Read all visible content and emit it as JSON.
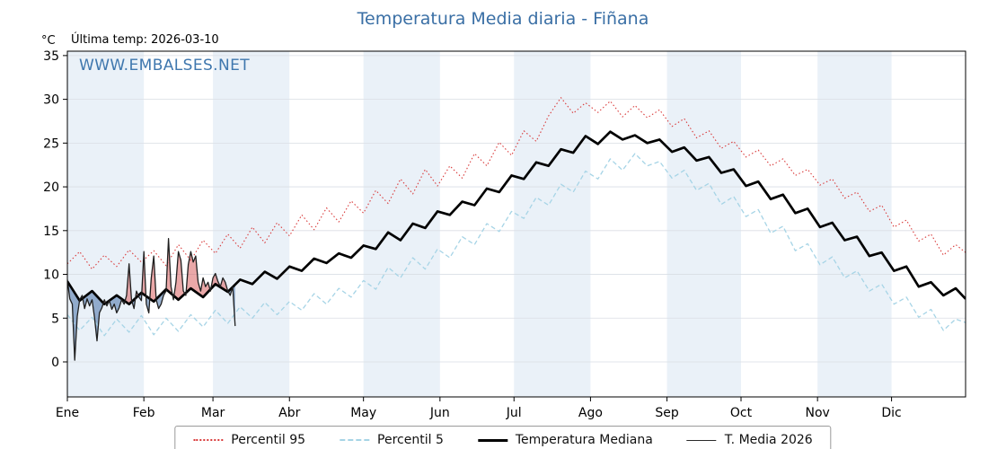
{
  "header": {
    "title": "Temperatura Media diaria - Fiñana",
    "last_temp_label": "Última temp: 2026-03-10",
    "y_unit_label": "°C",
    "watermark": "WWW.EMBALSES.NET"
  },
  "legend": {
    "items": [
      {
        "label": "Percentil 95",
        "color": "#d93b3b",
        "style": "dotted",
        "weight": 2
      },
      {
        "label": "Percentil 5",
        "color": "#a6d4e6",
        "style": "dashed",
        "weight": 2
      },
      {
        "label": "Temperatura Mediana",
        "color": "#000000",
        "style": "solid",
        "weight": 3
      },
      {
        "label": "T. Media 2026",
        "color": "#2a2a2a",
        "style": "solid",
        "weight": 1.5
      }
    ]
  },
  "chart_data": {
    "type": "line",
    "title": "Temperatura Media diaria - Fiñana",
    "ylabel": "°C",
    "xlim_days": [
      0,
      364
    ],
    "ylim": [
      -4,
      35.5
    ],
    "yticks": [
      0,
      5,
      10,
      15,
      20,
      25,
      30,
      35
    ],
    "month_labels": [
      "Ene",
      "Feb",
      "Mar",
      "Abr",
      "May",
      "Jun",
      "Jul",
      "Ago",
      "Sep",
      "Oct",
      "Nov",
      "Dic"
    ],
    "month_start_days": [
      0,
      31,
      59,
      90,
      120,
      151,
      181,
      212,
      243,
      273,
      304,
      334
    ],
    "style": {
      "band_color": "#eaf1f8",
      "grid_color": "#d9dee4",
      "axis_color": "#000000"
    },
    "series": [
      {
        "name": "Percentil 95",
        "color": "#d93b3b",
        "width": 1.1,
        "dash": "1.5 2.6",
        "points": [
          [
            0,
            11.2
          ],
          [
            5,
            12.6
          ],
          [
            10,
            10.6
          ],
          [
            15,
            12.2
          ],
          [
            20,
            10.9
          ],
          [
            25,
            12.8
          ],
          [
            30,
            11.4
          ],
          [
            35,
            12.7
          ],
          [
            40,
            11.0
          ],
          [
            45,
            13.4
          ],
          [
            50,
            11.6
          ],
          [
            55,
            13.9
          ],
          [
            60,
            12.4
          ],
          [
            65,
            14.6
          ],
          [
            70,
            13.0
          ],
          [
            75,
            15.4
          ],
          [
            80,
            13.6
          ],
          [
            85,
            15.9
          ],
          [
            90,
            14.4
          ],
          [
            95,
            16.8
          ],
          [
            100,
            15.1
          ],
          [
            105,
            17.6
          ],
          [
            110,
            16.0
          ],
          [
            115,
            18.4
          ],
          [
            120,
            17.0
          ],
          [
            125,
            19.6
          ],
          [
            130,
            18.1
          ],
          [
            135,
            20.9
          ],
          [
            140,
            19.2
          ],
          [
            145,
            22.0
          ],
          [
            150,
            20.1
          ],
          [
            155,
            22.4
          ],
          [
            160,
            21.0
          ],
          [
            165,
            23.8
          ],
          [
            170,
            22.4
          ],
          [
            175,
            25.1
          ],
          [
            180,
            23.6
          ],
          [
            185,
            26.4
          ],
          [
            190,
            25.2
          ],
          [
            195,
            28.1
          ],
          [
            200,
            30.2
          ],
          [
            205,
            28.4
          ],
          [
            210,
            29.6
          ],
          [
            215,
            28.5
          ],
          [
            220,
            29.8
          ],
          [
            225,
            28.0
          ],
          [
            230,
            29.3
          ],
          [
            235,
            27.9
          ],
          [
            240,
            28.8
          ],
          [
            245,
            26.9
          ],
          [
            250,
            27.8
          ],
          [
            255,
            25.6
          ],
          [
            260,
            26.4
          ],
          [
            265,
            24.4
          ],
          [
            270,
            25.2
          ],
          [
            275,
            23.4
          ],
          [
            280,
            24.2
          ],
          [
            285,
            22.4
          ],
          [
            290,
            23.2
          ],
          [
            295,
            21.3
          ],
          [
            300,
            22.0
          ],
          [
            305,
            20.2
          ],
          [
            310,
            20.9
          ],
          [
            315,
            18.7
          ],
          [
            320,
            19.4
          ],
          [
            325,
            17.2
          ],
          [
            330,
            17.9
          ],
          [
            335,
            15.4
          ],
          [
            340,
            16.2
          ],
          [
            345,
            13.8
          ],
          [
            350,
            14.6
          ],
          [
            355,
            12.2
          ],
          [
            360,
            13.4
          ],
          [
            364,
            12.5
          ]
        ]
      },
      {
        "name": "Percentil 5",
        "color": "#a6d4e6",
        "width": 1.3,
        "dash": "5 3.2",
        "points": [
          [
            0,
            5.4
          ],
          [
            5,
            3.6
          ],
          [
            10,
            5.1
          ],
          [
            15,
            3.0
          ],
          [
            20,
            4.9
          ],
          [
            25,
            3.4
          ],
          [
            30,
            5.3
          ],
          [
            35,
            3.1
          ],
          [
            40,
            5.0
          ],
          [
            45,
            3.5
          ],
          [
            50,
            5.4
          ],
          [
            55,
            4.0
          ],
          [
            60,
            5.9
          ],
          [
            65,
            4.4
          ],
          [
            70,
            6.3
          ],
          [
            75,
            5.0
          ],
          [
            80,
            6.8
          ],
          [
            85,
            5.4
          ],
          [
            90,
            6.9
          ],
          [
            95,
            5.9
          ],
          [
            100,
            7.8
          ],
          [
            105,
            6.6
          ],
          [
            110,
            8.4
          ],
          [
            115,
            7.4
          ],
          [
            120,
            9.3
          ],
          [
            125,
            8.3
          ],
          [
            130,
            10.8
          ],
          [
            135,
            9.6
          ],
          [
            140,
            11.9
          ],
          [
            145,
            10.6
          ],
          [
            150,
            12.9
          ],
          [
            155,
            11.9
          ],
          [
            160,
            14.3
          ],
          [
            165,
            13.4
          ],
          [
            170,
            15.8
          ],
          [
            175,
            14.9
          ],
          [
            180,
            17.2
          ],
          [
            185,
            16.4
          ],
          [
            190,
            18.8
          ],
          [
            195,
            17.9
          ],
          [
            200,
            20.3
          ],
          [
            205,
            19.4
          ],
          [
            210,
            21.8
          ],
          [
            215,
            20.9
          ],
          [
            220,
            23.2
          ],
          [
            225,
            21.9
          ],
          [
            230,
            23.8
          ],
          [
            235,
            22.4
          ],
          [
            240,
            22.9
          ],
          [
            245,
            21.0
          ],
          [
            250,
            21.9
          ],
          [
            255,
            19.6
          ],
          [
            260,
            20.4
          ],
          [
            265,
            18.0
          ],
          [
            270,
            18.9
          ],
          [
            275,
            16.6
          ],
          [
            280,
            17.4
          ],
          [
            285,
            14.7
          ],
          [
            290,
            15.5
          ],
          [
            295,
            12.7
          ],
          [
            300,
            13.5
          ],
          [
            305,
            11.1
          ],
          [
            310,
            12.0
          ],
          [
            315,
            9.6
          ],
          [
            320,
            10.4
          ],
          [
            325,
            8.1
          ],
          [
            330,
            8.9
          ],
          [
            335,
            6.6
          ],
          [
            340,
            7.4
          ],
          [
            345,
            5.1
          ],
          [
            350,
            6.0
          ],
          [
            355,
            3.6
          ],
          [
            360,
            4.9
          ],
          [
            364,
            4.5
          ]
        ]
      },
      {
        "name": "Temperatura Mediana",
        "color": "#000000",
        "width": 2.7,
        "dash": "",
        "points": [
          [
            0,
            9.2
          ],
          [
            5,
            7.0
          ],
          [
            10,
            8.1
          ],
          [
            15,
            6.6
          ],
          [
            20,
            7.6
          ],
          [
            25,
            6.6
          ],
          [
            30,
            7.9
          ],
          [
            35,
            6.9
          ],
          [
            40,
            8.3
          ],
          [
            45,
            7.1
          ],
          [
            50,
            8.4
          ],
          [
            55,
            7.4
          ],
          [
            60,
            8.9
          ],
          [
            65,
            8.0
          ],
          [
            70,
            9.4
          ],
          [
            75,
            8.9
          ],
          [
            80,
            10.3
          ],
          [
            85,
            9.5
          ],
          [
            90,
            10.9
          ],
          [
            95,
            10.4
          ],
          [
            100,
            11.8
          ],
          [
            105,
            11.3
          ],
          [
            110,
            12.4
          ],
          [
            115,
            11.9
          ],
          [
            120,
            13.3
          ],
          [
            125,
            12.9
          ],
          [
            130,
            14.8
          ],
          [
            135,
            13.9
          ],
          [
            140,
            15.8
          ],
          [
            145,
            15.3
          ],
          [
            150,
            17.2
          ],
          [
            155,
            16.8
          ],
          [
            160,
            18.3
          ],
          [
            165,
            17.9
          ],
          [
            170,
            19.8
          ],
          [
            175,
            19.4
          ],
          [
            180,
            21.3
          ],
          [
            185,
            20.9
          ],
          [
            190,
            22.8
          ],
          [
            195,
            22.4
          ],
          [
            200,
            24.3
          ],
          [
            205,
            23.9
          ],
          [
            210,
            25.8
          ],
          [
            215,
            24.9
          ],
          [
            220,
            26.3
          ],
          [
            225,
            25.4
          ],
          [
            230,
            25.9
          ],
          [
            235,
            25.0
          ],
          [
            240,
            25.4
          ],
          [
            245,
            24.0
          ],
          [
            250,
            24.5
          ],
          [
            255,
            23.0
          ],
          [
            260,
            23.4
          ],
          [
            265,
            21.6
          ],
          [
            270,
            22.0
          ],
          [
            275,
            20.1
          ],
          [
            280,
            20.6
          ],
          [
            285,
            18.6
          ],
          [
            290,
            19.1
          ],
          [
            295,
            17.0
          ],
          [
            300,
            17.5
          ],
          [
            305,
            15.4
          ],
          [
            310,
            15.9
          ],
          [
            315,
            13.9
          ],
          [
            320,
            14.3
          ],
          [
            325,
            12.1
          ],
          [
            330,
            12.5
          ],
          [
            335,
            10.4
          ],
          [
            340,
            10.9
          ],
          [
            345,
            8.6
          ],
          [
            350,
            9.1
          ],
          [
            355,
            7.6
          ],
          [
            360,
            8.4
          ],
          [
            364,
            7.2
          ]
        ]
      },
      {
        "name": "T. Media 2026",
        "color": "#1f1f1f",
        "width": 1.3,
        "dash": "",
        "fill_vs": "Temperatura Mediana",
        "fill_above_color": "rgba(217,97,97,0.55)",
        "fill_below_color": "rgba(85,125,175,0.6)",
        "points": [
          [
            0,
            9.4
          ],
          [
            1,
            7.2
          ],
          [
            2,
            6.6
          ],
          [
            3,
            0.2
          ],
          [
            4,
            5.2
          ],
          [
            5,
            7.1
          ],
          [
            6,
            7.6
          ],
          [
            7,
            6.1
          ],
          [
            8,
            7.2
          ],
          [
            9,
            6.4
          ],
          [
            10,
            7.1
          ],
          [
            11,
            5.1
          ],
          [
            12,
            2.4
          ],
          [
            13,
            5.6
          ],
          [
            14,
            6.2
          ],
          [
            15,
            7.1
          ],
          [
            16,
            6.4
          ],
          [
            17,
            7.0
          ],
          [
            18,
            6.0
          ],
          [
            19,
            6.6
          ],
          [
            20,
            5.6
          ],
          [
            21,
            6.2
          ],
          [
            22,
            7.1
          ],
          [
            23,
            6.6
          ],
          [
            24,
            7.6
          ],
          [
            25,
            11.2
          ],
          [
            26,
            7.1
          ],
          [
            27,
            6.1
          ],
          [
            28,
            8.1
          ],
          [
            29,
            7.4
          ],
          [
            30,
            7.0
          ],
          [
            31,
            12.6
          ],
          [
            32,
            6.6
          ],
          [
            33,
            5.6
          ],
          [
            34,
            9.6
          ],
          [
            35,
            12.1
          ],
          [
            36,
            7.1
          ],
          [
            37,
            6.1
          ],
          [
            38,
            6.6
          ],
          [
            39,
            7.6
          ],
          [
            40,
            8.1
          ],
          [
            41,
            14.1
          ],
          [
            42,
            8.6
          ],
          [
            43,
            7.1
          ],
          [
            44,
            9.1
          ],
          [
            45,
            12.6
          ],
          [
            46,
            11.6
          ],
          [
            47,
            8.1
          ],
          [
            48,
            7.6
          ],
          [
            49,
            11.1
          ],
          [
            50,
            12.6
          ],
          [
            51,
            11.4
          ],
          [
            52,
            12.1
          ],
          [
            53,
            9.1
          ],
          [
            54,
            8.1
          ],
          [
            55,
            9.6
          ],
          [
            56,
            8.6
          ],
          [
            57,
            9.1
          ],
          [
            58,
            8.1
          ],
          [
            59,
            9.6
          ],
          [
            60,
            10.1
          ],
          [
            61,
            9.2
          ],
          [
            62,
            8.6
          ],
          [
            63,
            9.6
          ],
          [
            64,
            9.1
          ],
          [
            65,
            8.1
          ],
          [
            66,
            7.6
          ],
          [
            67,
            8.6
          ],
          [
            68,
            4.1
          ]
        ]
      }
    ]
  }
}
